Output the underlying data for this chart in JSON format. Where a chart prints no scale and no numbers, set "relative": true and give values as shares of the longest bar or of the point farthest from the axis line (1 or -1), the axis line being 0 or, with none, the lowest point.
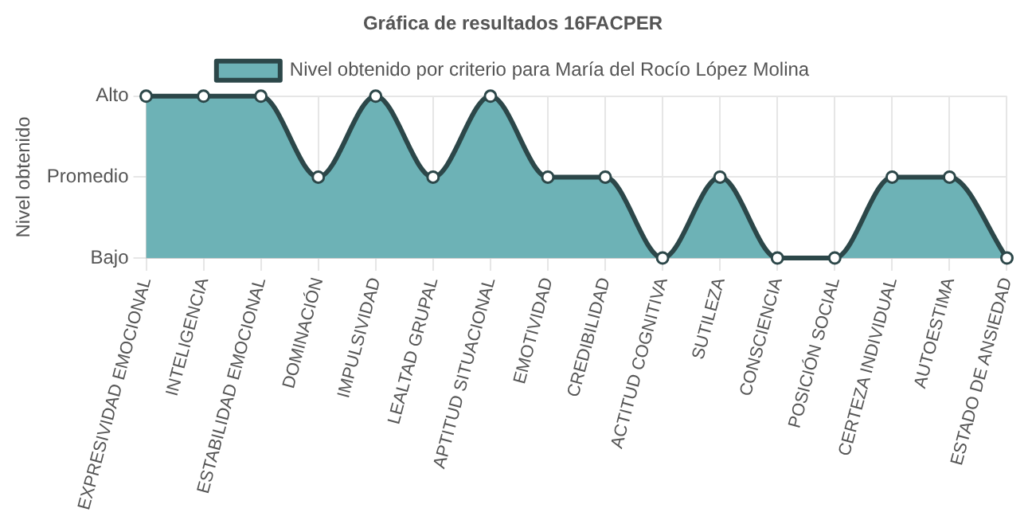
{
  "chart_data": {
    "type": "area",
    "title": "Gráfica de resultados 16FACPER",
    "ylabel": "Nivel obtenido",
    "categories": [
      "EXPRESIVIDAD EMOCIONAL",
      "INTELIGENCIA",
      "ESTABILIDAD EMOCIONAL",
      "DOMINACIÓN",
      "IMPULSIVIDAD",
      "LEALTAD GRUPAL",
      "APTITUD SITUACIONAL",
      "EMOTIVIDAD",
      "CREDIBILIDAD",
      "ACTITUD COGNITIVA",
      "SUTILEZA",
      "CONSCIENCIA",
      "POSICIÓN SOCIAL",
      "CERTEZA INDIVIDUAL",
      "AUTOESTIMA",
      "ESTADO DE ANSIEDAD"
    ],
    "series": [
      {
        "name": "Nivel obtenido por criterio para María del Rocío López Molina",
        "color": "#6db2b6",
        "values": [
          1,
          1,
          1,
          0.5,
          1,
          0.5,
          1,
          0.5,
          0.5,
          0,
          0.5,
          0,
          0,
          0.5,
          0.5,
          0
        ]
      }
    ],
    "relative": true,
    "y_categories": [
      "Alto",
      "Promedio",
      "Bajo"
    ],
    "grid": true,
    "legend": "top",
    "marker": "circle",
    "line_style": "solid"
  }
}
